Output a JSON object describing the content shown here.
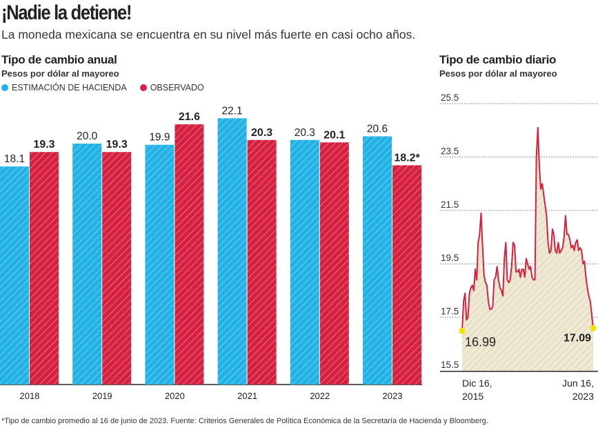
{
  "header": {
    "title": "¡Nadie la detiene!",
    "subtitle": "La moneda mexicana se encuentra en su nivel más fuerte en casi ocho años."
  },
  "colors": {
    "estimacion": "#22b2e6",
    "observado": "#d6203f",
    "area": "#efe8d2",
    "highlight": "#f2e200"
  },
  "chart_data": [
    {
      "type": "bar",
      "title": "Tipo de cambio anual",
      "subtitle": "Pesos por dólar al mayoreo",
      "categories": [
        "2018",
        "2019",
        "2020",
        "2021",
        "2022",
        "2023"
      ],
      "series": [
        {
          "name": "ESTIMACIÓN DE HACIENDA",
          "values": [
            18.1,
            20.0,
            19.9,
            22.1,
            20.3,
            20.6
          ],
          "labels": [
            "18.1",
            "20.0",
            "19.9",
            "22.1",
            "20.3",
            "20.6"
          ]
        },
        {
          "name": "OBSERVADO",
          "values": [
            19.3,
            19.3,
            21.6,
            20.3,
            20.1,
            18.2
          ],
          "labels": [
            "19.3",
            "19.3",
            "21.6",
            "20.3",
            "20.1",
            "18.2*"
          ]
        }
      ],
      "ylim": [
        0,
        23
      ]
    },
    {
      "type": "area",
      "title": "Tipo de cambio diario",
      "subtitle": "Pesos por dólar al mayoreo",
      "yticks": [
        "25.5",
        "23.5",
        "21.5",
        "19.5",
        "17.5",
        "15.5"
      ],
      "ylim": [
        15.5,
        25.5
      ],
      "xlabels": [
        [
          "Dic 16,",
          "2015"
        ],
        [
          "Jun 16,",
          "2023"
        ]
      ],
      "x_start": "2015-12",
      "x_end": "2023-06",
      "x_step": "month",
      "values": [
        16.99,
        18.1,
        18.4,
        17.4,
        17.5,
        18.4,
        18.6,
        18.7,
        18.5,
        19.3,
        18.9,
        20.3,
        20.6,
        21.4,
        20.2,
        19.1,
        18.8,
        18.7,
        18.1,
        17.8,
        17.8,
        17.9,
        18.9,
        19.0,
        19.4,
        18.9,
        18.6,
        18.5,
        18.3,
        19.7,
        20.3,
        18.9,
        18.8,
        18.9,
        19.4,
        20.3,
        20.2,
        19.2,
        19.2,
        19.3,
        19.0,
        19.3,
        19.3,
        19.0,
        19.7,
        19.5,
        19.3,
        19.4,
        19.0,
        18.9,
        18.9,
        23.5,
        24.6,
        23.2,
        22.3,
        22.5,
        22.1,
        21.7,
        21.3,
        20.3,
        19.9,
        20.0,
        20.8,
        20.6,
        20.0,
        19.9,
        20.3,
        19.9,
        20.0,
        20.1,
        20.5,
        21.3,
        20.6,
        20.6,
        20.4,
        20.1,
        20.2,
        20.0,
        20.3,
        20.4,
        20.0,
        20.1,
        20.0,
        19.5,
        19.6,
        19.0,
        18.6,
        18.3,
        18.1,
        17.6,
        17.09
      ],
      "start_label": "16.99",
      "end_label": "17.09"
    }
  ],
  "footnote": "*Tipo de cambio promedio al 16 de junio de 2023. Fuente: Criterios Generales de Política Económica de la Secretaría de Hacienda y Bloomberg."
}
